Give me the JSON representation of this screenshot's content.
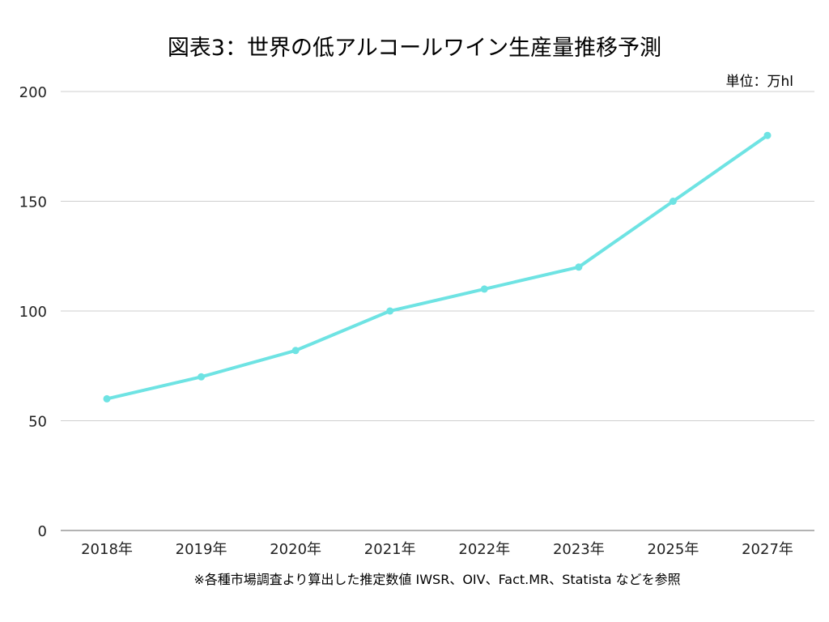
{
  "chart_data": {
    "type": "line",
    "title": "図表3：世界の低アルコールワイン生産量推移予測",
    "unit_label": "単位：万hl",
    "categories": [
      "2018年",
      "2019年",
      "2020年",
      "2021年",
      "2022年",
      "2023年",
      "2025年",
      "2027年"
    ],
    "values": [
      60,
      70,
      82,
      100,
      110,
      120,
      150,
      180
    ],
    "ylim": [
      0,
      200
    ],
    "yticks": [
      0,
      50,
      100,
      150,
      200
    ],
    "xlabel": "",
    "ylabel": "",
    "grid": true,
    "line_color": "#6ee3e3",
    "source_note": "※各種市場調査より算出した推定数値 IWSR、OIV、Fact.MR、Statista などを参照"
  }
}
